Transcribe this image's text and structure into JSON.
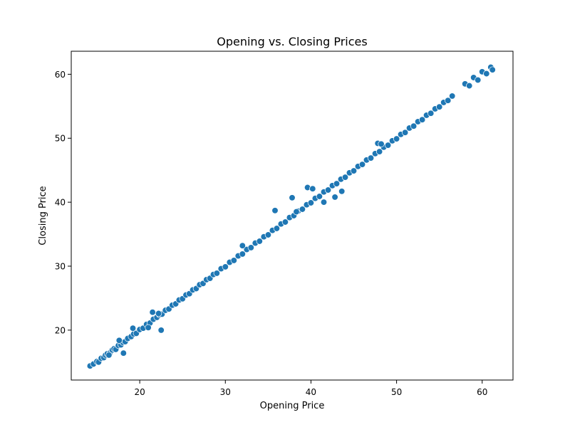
{
  "chart_data": {
    "type": "scatter",
    "title": "Opening vs. Closing Prices",
    "xlabel": "Opening Price",
    "ylabel": "Closing Price",
    "xlim": [
      12.0,
      63.6
    ],
    "ylim": [
      12.2,
      63.6
    ],
    "xticks": [
      20,
      30,
      40,
      50,
      60
    ],
    "yticks": [
      20,
      30,
      40,
      50,
      60
    ],
    "grid": false,
    "legend": "none",
    "marker_color": "#1f77b4",
    "series": [
      {
        "x": [
          14.2,
          14.6,
          15.0,
          15.2,
          15.5,
          15.8,
          16.0,
          16.2,
          16.5,
          16.8,
          17.0,
          17.2,
          17.5,
          17.8,
          18.0,
          18.3,
          18.6,
          19.0,
          19.3,
          19.6,
          20.0,
          20.4,
          20.8,
          21.2,
          21.6,
          22.0,
          22.3,
          22.6,
          23.0,
          23.4,
          23.8,
          24.2,
          24.6,
          25.0,
          25.4,
          25.8,
          26.2,
          26.6,
          27.0,
          27.4,
          27.8,
          28.2,
          28.6,
          29.0,
          29.5,
          30.0,
          30.5,
          31.0,
          31.5,
          32.0,
          32.5,
          33.0,
          33.5,
          34.0,
          34.5,
          35.0,
          35.5,
          36.0,
          36.5,
          37.0,
          37.5,
          38.0,
          38.5,
          39.0,
          39.5,
          40.0,
          40.5,
          41.0,
          41.5,
          42.0,
          42.5,
          43.0,
          43.5,
          44.0,
          44.5,
          45.0,
          45.5,
          46.0,
          46.5,
          47.0,
          47.5,
          48.0,
          48.5,
          49.0,
          49.5,
          50.0,
          50.5,
          51.0,
          51.5,
          52.0,
          52.5,
          53.0,
          53.5,
          54.0,
          54.5,
          55.0,
          55.5,
          56.0,
          56.5,
          58.0,
          58.5,
          59.0,
          59.5,
          60.0,
          60.5,
          61.0,
          61.2,
          17.6,
          18.1,
          19.2,
          21.0,
          21.5,
          22.5,
          35.8,
          39.6,
          40.2,
          41.5,
          43.6,
          47.8,
          48.2,
          42.8,
          37.8,
          38.3,
          22.2,
          16.4,
          32.0
        ],
        "y": [
          14.4,
          14.7,
          15.1,
          15.0,
          15.6,
          15.7,
          16.1,
          16.3,
          16.4,
          16.9,
          17.1,
          17.0,
          17.6,
          17.7,
          18.1,
          18.2,
          18.7,
          19.0,
          19.4,
          19.5,
          20.1,
          20.3,
          20.9,
          21.1,
          21.7,
          22.0,
          22.4,
          22.5,
          23.1,
          23.3,
          23.9,
          24.1,
          24.7,
          24.9,
          25.5,
          25.7,
          26.3,
          26.5,
          27.1,
          27.3,
          27.9,
          28.1,
          28.7,
          28.9,
          29.6,
          29.9,
          30.6,
          30.9,
          31.6,
          31.9,
          32.6,
          32.9,
          33.6,
          33.9,
          34.6,
          34.9,
          35.6,
          35.9,
          36.6,
          36.9,
          37.6,
          37.9,
          38.6,
          38.9,
          39.6,
          39.9,
          40.6,
          40.9,
          41.6,
          41.9,
          42.6,
          42.9,
          43.6,
          43.9,
          44.6,
          44.9,
          45.6,
          45.9,
          46.6,
          46.9,
          47.6,
          47.9,
          48.6,
          48.9,
          49.6,
          49.9,
          50.6,
          50.9,
          51.6,
          51.9,
          52.6,
          52.9,
          53.6,
          53.9,
          54.6,
          54.9,
          55.6,
          55.9,
          56.6,
          58.5,
          58.2,
          59.5,
          59.1,
          60.4,
          60.1,
          61.1,
          60.7,
          18.4,
          16.4,
          20.3,
          20.4,
          22.8,
          20.0,
          38.7,
          42.3,
          42.1,
          40.0,
          41.7,
          49.2,
          49.1,
          40.8,
          40.7,
          38.5,
          22.6,
          16.1,
          33.2
        ]
      }
    ]
  }
}
